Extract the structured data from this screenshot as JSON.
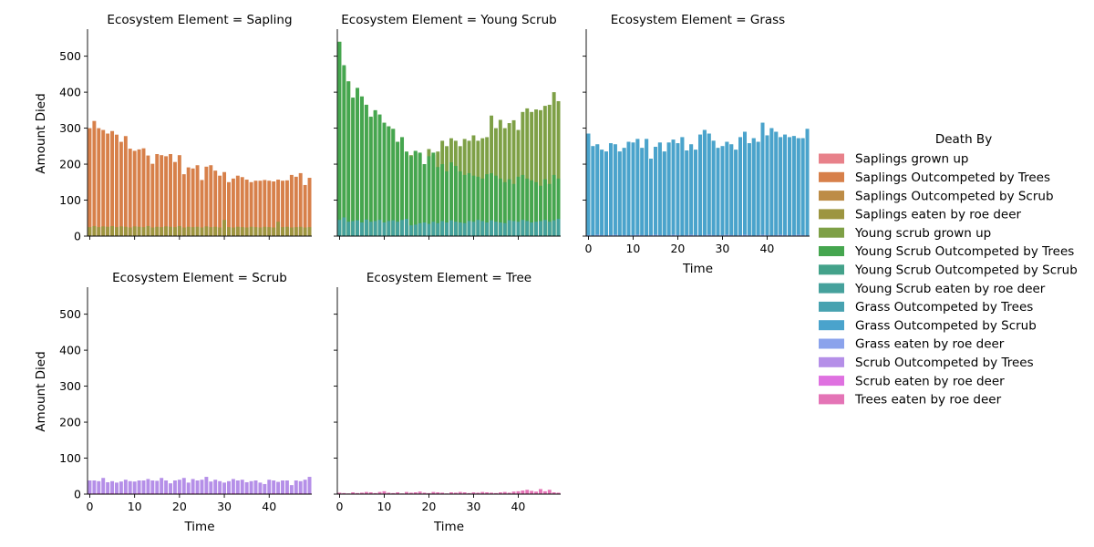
{
  "figure": {
    "legend_title": "Death By",
    "ylabel": "Amount Died",
    "xlabel": "Time"
  },
  "chart_data": {
    "type": "bar",
    "facet_variable": "Ecosystem Element",
    "hue_variable": "Death By",
    "x_ticks": [
      0,
      10,
      20,
      30,
      40
    ],
    "y_ticks": [
      0,
      100,
      200,
      300,
      400,
      500
    ],
    "xlim": [
      -0.5,
      49.5
    ],
    "ylim": [
      0,
      570
    ],
    "grid": false,
    "legend_position": "right",
    "series": [
      {
        "name": "Saplings grown up",
        "color": "#e8818a"
      },
      {
        "name": "Saplings Outcompeted by Trees",
        "color": "#d7804a"
      },
      {
        "name": "Saplings Outcompeted by Scrub",
        "color": "#bd8c46"
      },
      {
        "name": "Saplings eaten by roe deer",
        "color": "#9d9540"
      },
      {
        "name": "Young scrub grown up",
        "color": "#7ea046"
      },
      {
        "name": "Young Scrub Outcompeted by Trees",
        "color": "#45a64f"
      },
      {
        "name": "Young Scrub Outcompeted by Scrub",
        "color": "#43a28a"
      },
      {
        "name": "Young Scrub eaten by roe deer",
        "color": "#45a19c"
      },
      {
        "name": "Grass Outcompeted by Trees",
        "color": "#47a2b0"
      },
      {
        "name": "Grass Outcompeted by Scrub",
        "color": "#4aa3cc"
      },
      {
        "name": "Grass eaten by roe deer",
        "color": "#8ba3ec"
      },
      {
        "name": "Scrub Outcompeted by Trees",
        "color": "#b58fe8"
      },
      {
        "name": "Scrub eaten by roe deer",
        "color": "#df71e0"
      },
      {
        "name": "Trees eaten by roe deer",
        "color": "#e474b6"
      }
    ],
    "panels": [
      {
        "title": "Ecosystem Element = Sapling",
        "layers": [
          {
            "series": "Saplings Outcompeted by Trees",
            "values": [
              300,
              320,
              300,
              295,
              285,
              292,
              282,
              262,
              278,
              243,
              237,
              241,
              244,
              224,
              201,
              228,
              225,
              222,
              228,
              206,
              225,
              172,
              191,
              188,
              197,
              156,
              193,
              197,
              182,
              168,
              178,
              150,
              160,
              168,
              164,
              157,
              150,
              154,
              154,
              156,
              154,
              152,
              157,
              154,
              155,
              170,
              165,
              175,
              142,
              162
            ]
          },
          {
            "series": "Saplings eaten by roe deer",
            "values": [
              25,
              28,
              25,
              27,
              26,
              28,
              25,
              27,
              26,
              24,
              27,
              26,
              25,
              28,
              24,
              26,
              25,
              27,
              26,
              25,
              28,
              24,
              26,
              25,
              26,
              24,
              27,
              25,
              26,
              24,
              45,
              25,
              24,
              26,
              25,
              24,
              26,
              25,
              24,
              26,
              25,
              24,
              40,
              25,
              26,
              24,
              25,
              26,
              24,
              25
            ]
          }
        ]
      },
      {
        "title": "Ecosystem Element = Young Scrub",
        "layers": [
          {
            "series": "Young scrub grown up",
            "values": [
              540,
              470,
              430,
              380,
              410,
              388,
              365,
              330,
              348,
              335,
              315,
              305,
              298,
              262,
              275,
              232,
              225,
              235,
              228,
              200,
              242,
              225,
              235,
              265,
              250,
              272,
              265,
              250,
              270,
              265,
              280,
              265,
              272,
              275,
              335,
              300,
              323,
              300,
              314,
              322,
              295,
              345,
              355,
              345,
              352,
              350,
              362,
              365,
              400,
              375
            ]
          },
          {
            "series": "Young Scrub Outcompeted by Trees",
            "values": [
              540,
              475,
              430,
              385,
              412,
              388,
              365,
              332,
              350,
              338,
              315,
              305,
              298,
              262,
              275,
              235,
              222,
              237,
              232,
              200,
              222,
              232,
              192,
              200,
              180,
              205,
              195,
              180,
              170,
              175,
              168,
              165,
              160,
              172,
              175,
              168,
              160,
              150,
              158,
              145,
              165,
              170,
              160,
              155,
              150,
              140,
              158,
              145,
              170,
              160
            ]
          },
          {
            "series": "Young Scrub eaten by roe deer",
            "values": [
              45,
              52,
              40,
              42,
              44,
              38,
              46,
              40,
              42,
              45,
              38,
              42,
              44,
              40,
              45,
              48,
              30,
              32,
              36,
              38,
              34,
              40,
              36,
              42,
              38,
              44,
              40,
              38,
              36,
              42,
              40,
              45,
              42,
              38,
              44,
              40,
              38,
              36,
              44,
              42,
              40,
              45,
              42,
              38,
              40,
              42,
              45,
              40,
              44,
              48
            ]
          }
        ]
      },
      {
        "title": "Ecosystem Element = Grass",
        "layers": [
          {
            "series": "Grass Outcompeted by Trees",
            "values": [
              285,
              250,
              255,
              240,
              235,
              258,
              255,
              235,
              245,
              262,
              260,
              270,
              245,
              270,
              215,
              248,
              260,
              235,
              260,
              268,
              258,
              275,
              238,
              255,
              240,
              282,
              295,
              285,
              265,
              245,
              250,
              262,
              255,
              240,
              275,
              290,
              258,
              272,
              262,
              315,
              280,
              300,
              290,
              275,
              282,
              275,
              278,
              272,
              272,
              298
            ]
          },
          {
            "series": "Grass Outcompeted by Scrub",
            "values": [
              285,
              250,
              255,
              240,
              235,
              258,
              255,
              235,
              245,
              262,
              260,
              270,
              245,
              270,
              215,
              248,
              260,
              235,
              260,
              268,
              258,
              275,
              238,
              255,
              240,
              282,
              295,
              285,
              265,
              245,
              250,
              262,
              255,
              240,
              275,
              290,
              258,
              272,
              262,
              315,
              280,
              300,
              290,
              275,
              282,
              275,
              278,
              272,
              272,
              298
            ]
          },
          {
            "series": "Grass eaten by roe deer",
            "values": [
              3,
              2,
              4,
              3,
              2,
              3,
              4,
              2,
              3,
              2,
              3,
              4,
              3,
              2,
              3,
              4,
              3,
              2,
              3,
              4,
              3,
              2,
              3,
              4,
              3,
              2,
              3,
              4,
              3,
              2,
              3,
              4,
              3,
              2,
              3,
              4,
              3,
              2,
              3,
              4,
              3,
              2,
              3,
              4,
              3,
              2,
              3,
              4,
              3,
              2
            ]
          }
        ]
      },
      {
        "title": "Ecosystem Element = Scrub",
        "layers": [
          {
            "series": "Scrub Outcompeted by Trees",
            "values": [
              38,
              38,
              36,
              45,
              33,
              36,
              32,
              35,
              40,
              36,
              35,
              38,
              38,
              42,
              38,
              37,
              45,
              38,
              30,
              38,
              40,
              45,
              32,
              42,
              38,
              40,
              48,
              35,
              40,
              36,
              32,
              36,
              42,
              38,
              40,
              33,
              36,
              38,
              32,
              28,
              40,
              38,
              34,
              38,
              38,
              25,
              38,
              36,
              40,
              48
            ]
          },
          {
            "series": "Scrub eaten by roe deer",
            "values": [
              2,
              2,
              3,
              2,
              2,
              3,
              2,
              2,
              3,
              2,
              2,
              3,
              2,
              2,
              3,
              2,
              2,
              3,
              2,
              2,
              3,
              2,
              2,
              3,
              2,
              2,
              3,
              2,
              2,
              3,
              2,
              2,
              3,
              2,
              2,
              3,
              2,
              2,
              3,
              2,
              2,
              3,
              2,
              2,
              3,
              2,
              2,
              3,
              2,
              2
            ]
          }
        ]
      },
      {
        "title": "Ecosystem Element = Tree",
        "layers": [
          {
            "series": "Trees eaten by roe deer",
            "values": [
              4,
              3,
              2,
              5,
              3,
              4,
              6,
              5,
              3,
              6,
              8,
              4,
              3,
              5,
              2,
              6,
              4,
              5,
              7,
              4,
              3,
              6,
              5,
              4,
              2,
              5,
              4,
              6,
              5,
              3,
              5,
              4,
              6,
              5,
              4,
              3,
              5,
              6,
              4,
              7,
              8,
              10,
              12,
              9,
              7,
              14,
              8,
              12,
              5,
              4
            ]
          }
        ]
      }
    ]
  }
}
